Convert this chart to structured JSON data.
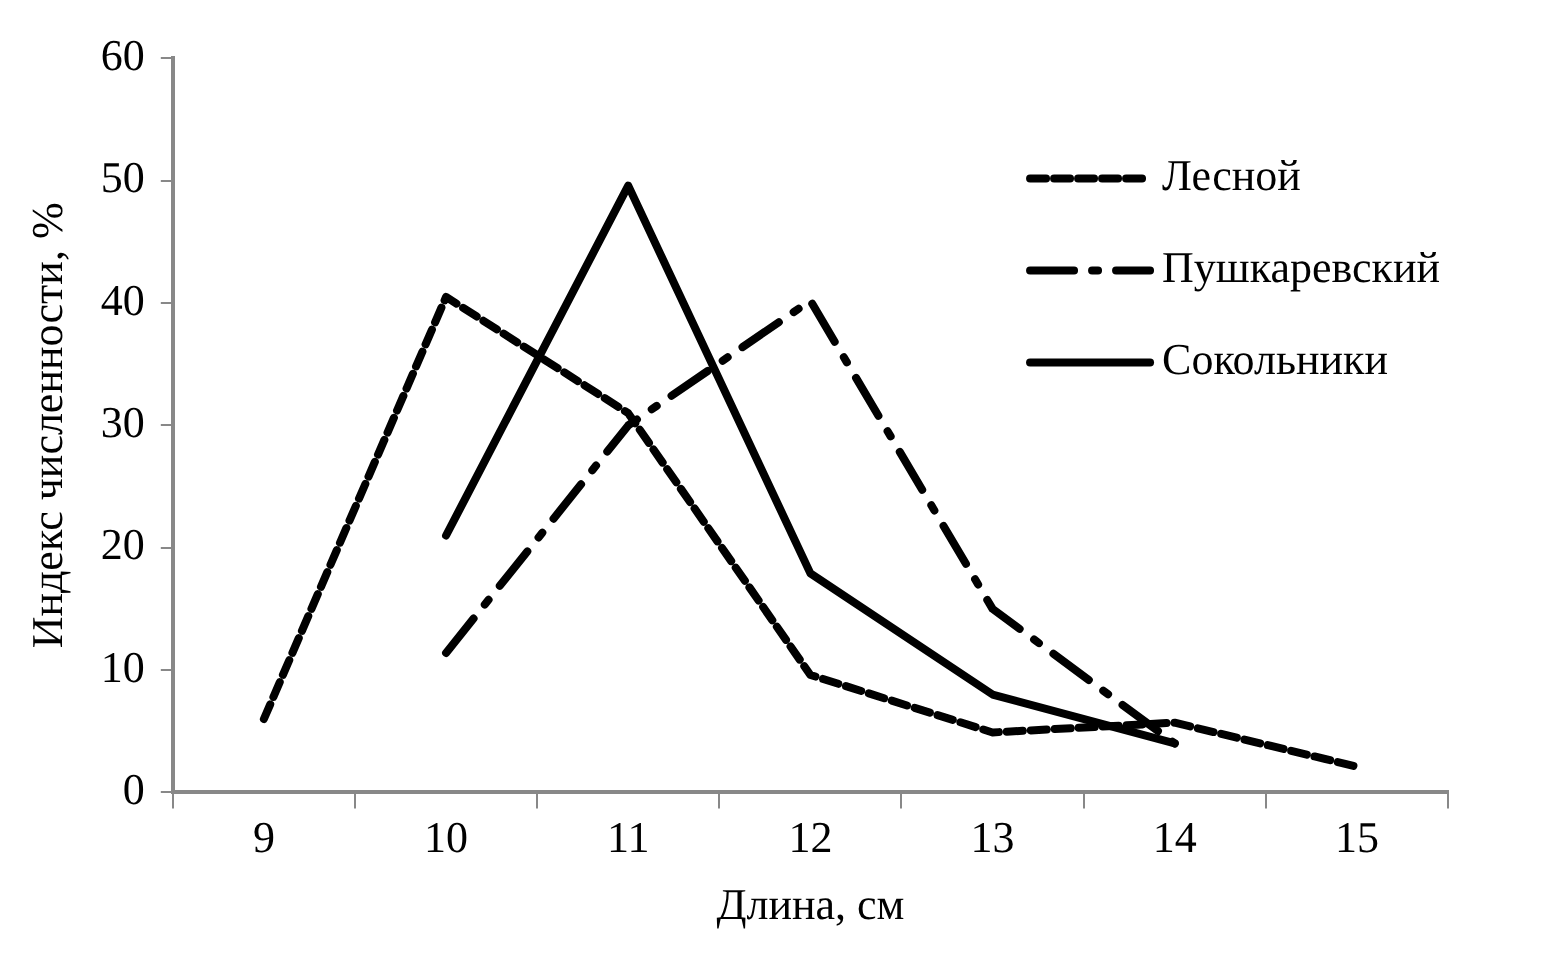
{
  "chart_data": {
    "type": "line",
    "xlabel": "Длина, см",
    "ylabel": "Индекс численности, %",
    "categories": [
      "9",
      "10",
      "11",
      "12",
      "13",
      "14",
      "15"
    ],
    "series": [
      {
        "name": "Лесной",
        "color": "#000000",
        "line_style": "dashed",
        "values": [
          6,
          40.5,
          31,
          9.6,
          4.9,
          5.7,
          2.1
        ]
      },
      {
        "name": "Пушкаревский",
        "color": "#000000",
        "line_style": "dashdot",
        "values": [
          null,
          11.4,
          30,
          40.2,
          15,
          4,
          null
        ]
      },
      {
        "name": "Сокольники",
        "color": "#000000",
        "line_style": "solid",
        "values": [
          null,
          21,
          49.6,
          17.9,
          8,
          4,
          null
        ]
      }
    ],
    "ylim": [
      0,
      60
    ],
    "yticks": [
      0,
      10,
      20,
      30,
      40,
      50,
      60
    ],
    "grid": false,
    "legend": "top right",
    "marker": "none"
  }
}
